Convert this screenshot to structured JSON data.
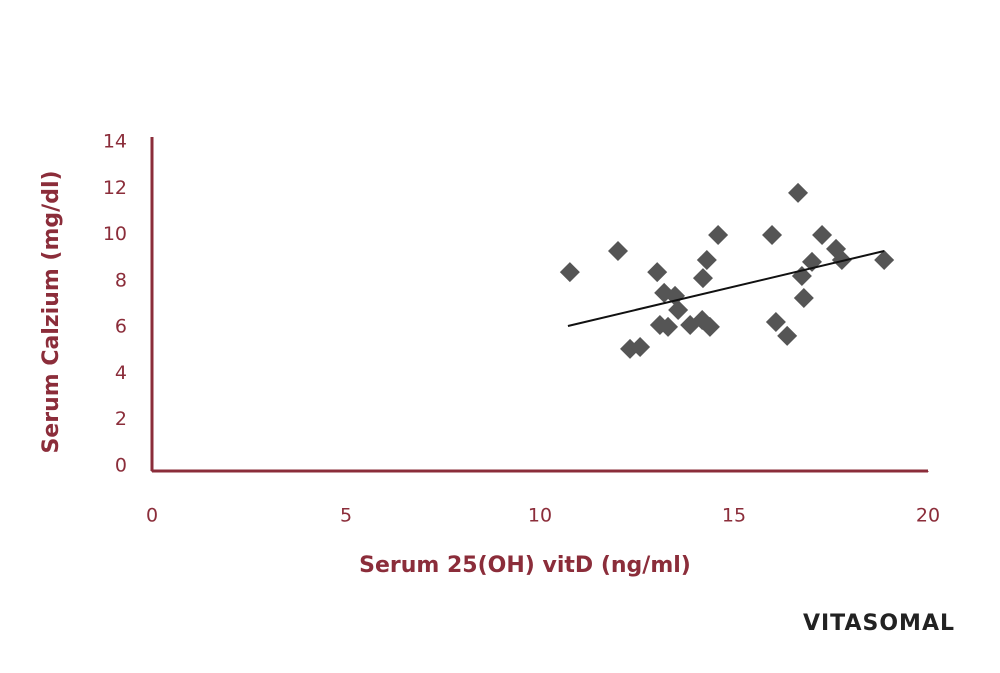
{
  "chart_data": {
    "type": "scatter",
    "xlabel": "Serum 25(OH) vitD (ng/ml)",
    "ylabel": "Serum Calzium (mg/dl)",
    "logo": "VITASOMAL",
    "xlim": [
      0,
      20
    ],
    "ylim": [
      0,
      14
    ],
    "xticks": [
      0,
      5,
      10,
      15,
      20
    ],
    "yticks": [
      0,
      2,
      4,
      6,
      8,
      10,
      12,
      14
    ],
    "grid": false,
    "axis_color": "#8b2d3a",
    "series": [
      {
        "color": "#555555",
        "x": [
          10.77,
          12.01,
          13.02,
          12.32,
          12.58,
          13.2,
          13.48,
          13.56,
          13.09,
          13.3,
          13.87,
          14.18,
          14.38,
          14.2,
          14.3,
          14.59,
          15.98,
          16.08,
          16.37,
          16.65,
          16.75,
          16.8,
          17.01,
          17.27,
          17.63,
          17.78,
          18.87
        ],
        "values": [
          8.38,
          9.29,
          8.38,
          5.06,
          5.14,
          7.48,
          7.35,
          6.74,
          6.09,
          6.01,
          6.09,
          6.31,
          6.01,
          8.12,
          8.9,
          9.98,
          9.98,
          6.22,
          5.62,
          11.8,
          8.21,
          7.26,
          8.82,
          9.98,
          9.38,
          8.9,
          8.9
        ]
      }
    ],
    "trendline": {
      "color": "#111111",
      "x": [
        10.72,
        18.87
      ],
      "values": [
        6.05,
        9.29
      ]
    }
  }
}
